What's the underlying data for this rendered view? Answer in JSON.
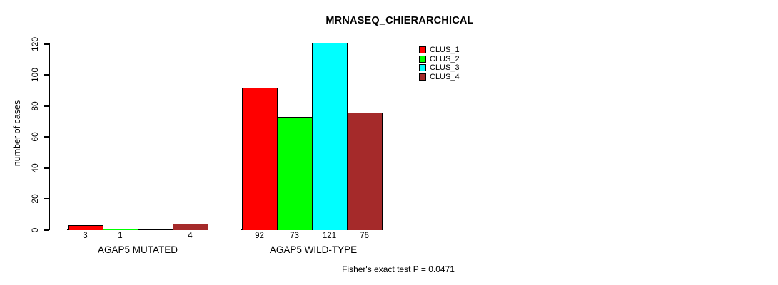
{
  "title": "MRNASEQ_CHIERARCHICAL",
  "annotation": "Fisher's exact test P = 0.0471",
  "chart_data": {
    "type": "bar",
    "title": "MRNASEQ_CHIERARCHICAL",
    "xlabel": "",
    "ylabel": "number of cases",
    "ylim": [
      0,
      120
    ],
    "yticks": [
      0,
      20,
      40,
      60,
      80,
      100,
      120
    ],
    "grid": false,
    "categories": [
      "AGAP5 MUTATED",
      "AGAP5 WILD-TYPE"
    ],
    "series": [
      {
        "name": "CLUS_1",
        "color": "#ff0000",
        "values": [
          3,
          92
        ]
      },
      {
        "name": "CLUS_2",
        "color": "#00ff00",
        "values": [
          1,
          73
        ]
      },
      {
        "name": "CLUS_3",
        "color": "#00ffff",
        "values": [
          0,
          121
        ]
      },
      {
        "name": "CLUS_4",
        "color": "#a52a2a",
        "values": [
          4,
          76
        ]
      }
    ],
    "bar_value_labels": [
      [
        "3",
        "1",
        "",
        "4"
      ],
      [
        "92",
        "73",
        "121",
        "76"
      ]
    ],
    "legend": {
      "position": "top-right",
      "entries": [
        "CLUS_1",
        "CLUS_2",
        "CLUS_3",
        "CLUS_4"
      ]
    },
    "annotation": "Fisher's exact test P = 0.0471"
  }
}
